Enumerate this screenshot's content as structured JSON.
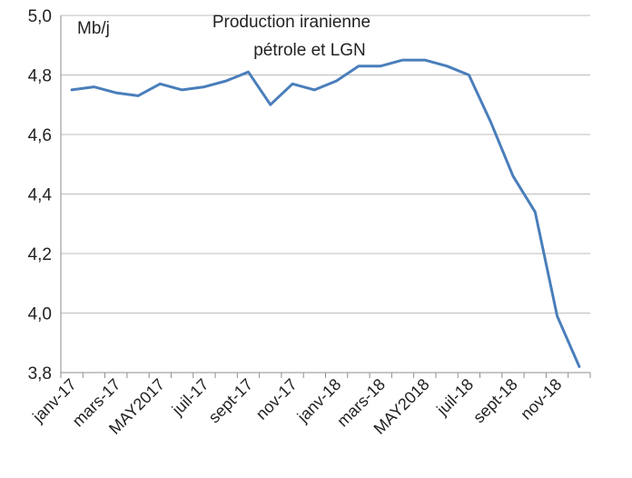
{
  "chart_data": {
    "type": "line",
    "title": "",
    "xlabel": "",
    "ylabel": "",
    "annotations": {
      "unit": "Mb/j",
      "label_line1": "Production iranienne",
      "label_line2": "pétrole et LGN"
    },
    "ylim": [
      3.8,
      5.0
    ],
    "yticks": [
      "3,8",
      "4,0",
      "4,2",
      "4,4",
      "4,6",
      "4,8",
      "5,0"
    ],
    "ytick_values": [
      3.8,
      4.0,
      4.2,
      4.4,
      4.6,
      4.8,
      5.0
    ],
    "x_tick_labels": [
      "janv-17",
      "mars-17",
      "MAY2017",
      "juil-17",
      "sept-17",
      "nov-17",
      "janv-18",
      "mars-18",
      "MAY2018",
      "juil-18",
      "sept-18",
      "nov-18"
    ],
    "grid": true,
    "legend": "none",
    "line_color": "#4a7ebb",
    "series": [
      {
        "values": [
          4.75,
          4.76,
          4.74,
          4.73,
          4.77,
          4.75,
          4.76,
          4.78,
          4.81,
          4.7,
          4.77,
          4.75,
          4.78,
          4.83,
          4.83,
          4.85,
          4.85,
          4.83,
          4.8,
          4.64,
          4.46,
          4.34,
          3.99,
          3.82
        ]
      }
    ]
  }
}
